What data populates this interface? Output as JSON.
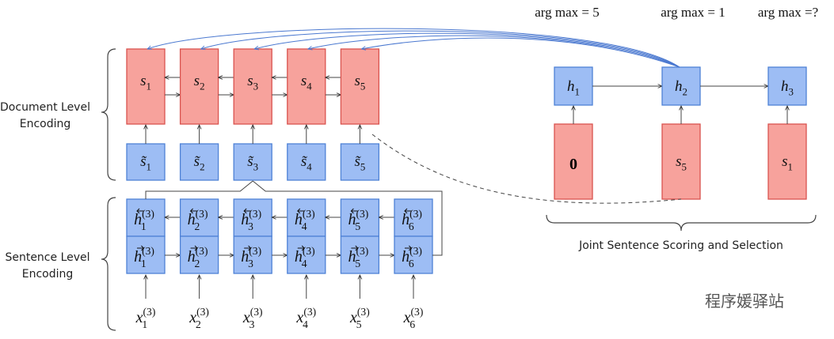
{
  "labels": {
    "document_level": [
      "Document Level",
      "Encoding"
    ],
    "sentence_level": [
      "Sentence Level",
      "Encoding"
    ],
    "joint": "Joint Sentence Scoring and Selection"
  },
  "document_states": {
    "symbol": "s",
    "indices": [
      "1",
      "2",
      "3",
      "4",
      "5"
    ]
  },
  "sentence_vectors": {
    "symbol": "s̃",
    "indices": [
      "1",
      "2",
      "3",
      "4",
      "5"
    ]
  },
  "word_states": {
    "symbol": "h",
    "superscript": "(3)",
    "indices": [
      "1",
      "2",
      "3",
      "4",
      "5",
      "6"
    ]
  },
  "word_inputs": {
    "symbol": "x",
    "superscript": "(3)",
    "indices": [
      "1",
      "2",
      "3",
      "4",
      "5",
      "6"
    ]
  },
  "decoder": {
    "symbol": "h",
    "indices": [
      "1",
      "2",
      "3"
    ],
    "inputs": [
      {
        "text": "0"
      },
      {
        "symbol": "s",
        "index": "5"
      },
      {
        "symbol": "s",
        "index": "1"
      }
    ],
    "argmax": [
      "arg max = 5",
      "arg max = 1",
      "arg max =?"
    ]
  },
  "watermark": "程序媛驿站"
}
